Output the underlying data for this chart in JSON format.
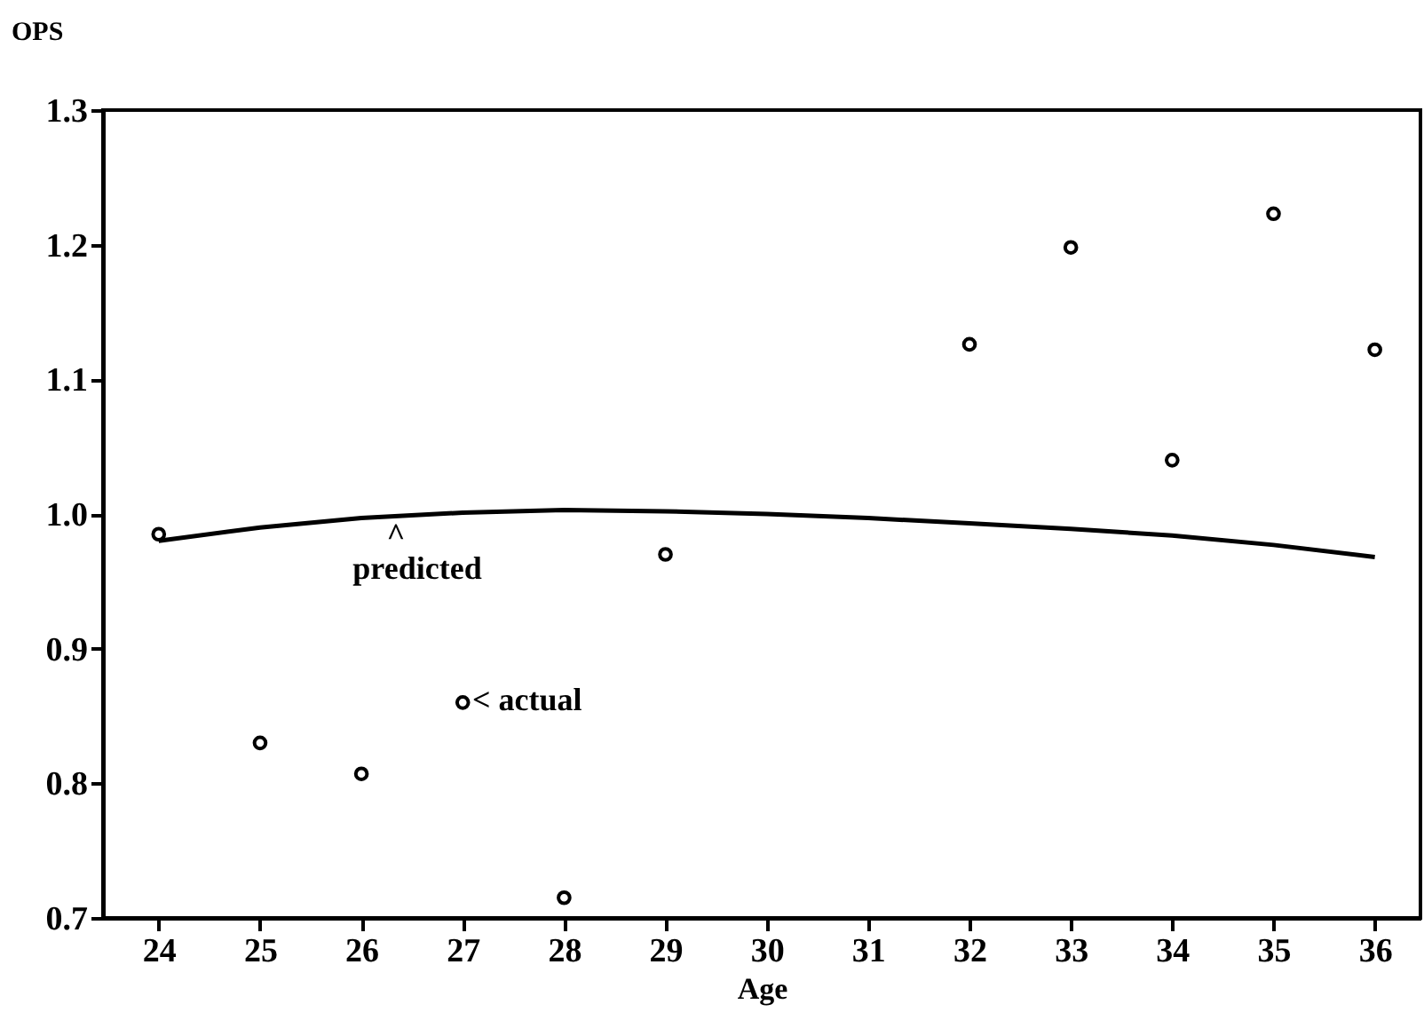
{
  "chart_data": {
    "type": "scatter",
    "xlabel": "Age",
    "ylabel": "OPS",
    "xlim": [
      23.45,
      36.45
    ],
    "ylim": [
      0.7,
      1.3
    ],
    "xticks": [
      24,
      25,
      26,
      27,
      28,
      29,
      30,
      31,
      32,
      33,
      34,
      35,
      36
    ],
    "yticks": [
      {
        "value": 0.7,
        "label": "0.7"
      },
      {
        "value": 0.8,
        "label": "0.8"
      },
      {
        "value": 0.9,
        "label": "0.9"
      },
      {
        "value": 1.0,
        "label": "1.0"
      },
      {
        "value": 1.1,
        "label": "1.1"
      },
      {
        "value": 1.2,
        "label": "1.2"
      },
      {
        "value": 1.3,
        "label": "1.3"
      }
    ],
    "grid": false,
    "series": [
      {
        "type": "line",
        "color": "#000000",
        "line_style": "solid",
        "x": [
          24,
          25,
          26,
          27,
          28,
          29,
          30,
          31,
          32,
          33,
          34,
          35,
          36
        ],
        "values": [
          0.98,
          0.99,
          0.997,
          1.001,
          1.003,
          1.002,
          1.0,
          0.997,
          0.993,
          0.989,
          0.984,
          0.977,
          0.968
        ]
      },
      {
        "color": "#000000",
        "marker": "circle",
        "x": [
          24,
          25,
          26,
          27,
          28,
          29,
          32,
          33,
          34,
          35,
          36
        ],
        "values": [
          0.985,
          0.83,
          0.807,
          0.86,
          0.715,
          0.97,
          1.126,
          1.198,
          1.04,
          1.223,
          1.122
        ]
      }
    ],
    "annotations": [
      "^",
      "predicted",
      "< actual"
    ]
  }
}
